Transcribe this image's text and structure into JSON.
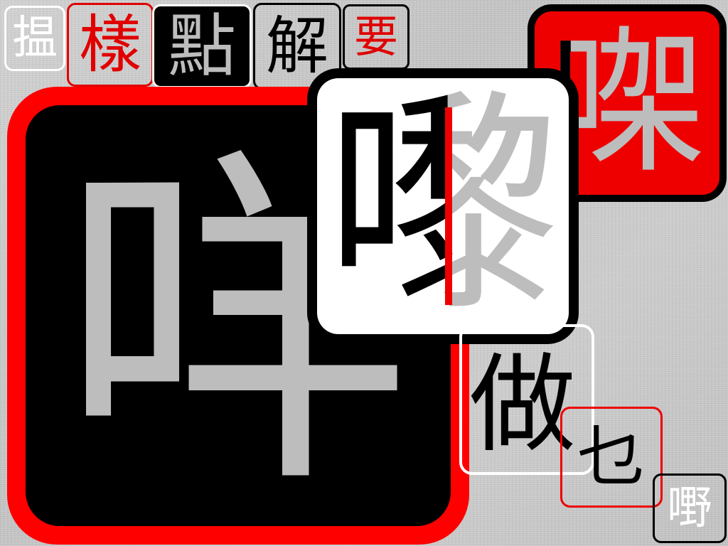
{
  "tiles": {
    "top_row": [
      {
        "char": "揾",
        "color": "#ffffff"
      },
      {
        "char": "樣",
        "color": "#e00000"
      },
      {
        "char": "點",
        "color": "#bdbdbd"
      },
      {
        "char": "解",
        "color": "#000000"
      },
      {
        "char": "要",
        "color": "#e00000"
      }
    ],
    "big": {
      "char": "咩",
      "color": "#bdbdbd",
      "background": "#000000",
      "border": "#ff0000"
    },
    "white": {
      "char": "嚟",
      "background": "#ffffff",
      "accent": "#ee0000"
    },
    "red": {
      "char": "㗎",
      "background": "#ee0000"
    },
    "lower": [
      {
        "char": "做",
        "color": "#000000"
      },
      {
        "char": "乜",
        "color": "#000000"
      },
      {
        "char": "嘢",
        "color": "#ffffff"
      }
    ]
  },
  "colors": {
    "red": "#ee0000",
    "black": "#000000",
    "white": "#ffffff",
    "grey": "#bdbdbd"
  }
}
